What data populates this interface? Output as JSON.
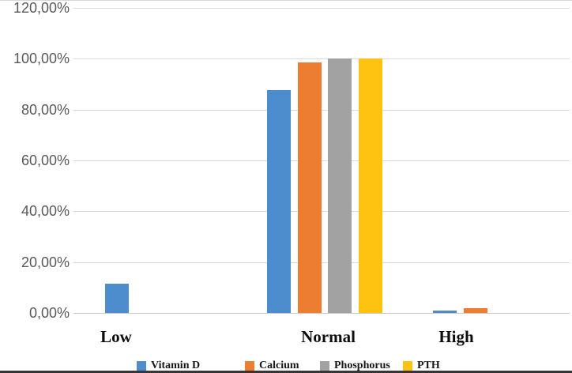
{
  "chart_data": {
    "type": "bar",
    "title": "",
    "xlabel": "",
    "ylabel": "",
    "categories": [
      "Low",
      "Normal",
      "High"
    ],
    "series": [
      {
        "name": "Vitamin D",
        "color": "#4D8DCE",
        "values": [
          11.5,
          87.8,
          0.9
        ]
      },
      {
        "name": "Calcium",
        "color": "#ED7D31",
        "values": [
          0,
          98.4,
          1.8
        ]
      },
      {
        "name": "Phosphorus",
        "color": "#A2A2A2",
        "values": [
          0,
          100.0,
          0
        ]
      },
      {
        "name": "PTH",
        "color": "#FEC211",
        "values": [
          0,
          100.0,
          0
        ]
      }
    ],
    "ylim": [
      0,
      120
    ],
    "ytick_step": 20,
    "ytick_labels": [
      "0,00%",
      "20,00%",
      "40,00%",
      "60,00%",
      "80,00%",
      "100,00%",
      "120,00%"
    ],
    "grid": true,
    "legend_position": "bottom",
    "colors": {
      "gridline": "#d9d9d9",
      "axis_line": "#c9c9c9",
      "tick_text": "#595959",
      "category_text": "#0d0d0d",
      "top_border": "#d6d6d6",
      "bottom_border": "#3a3534"
    }
  }
}
